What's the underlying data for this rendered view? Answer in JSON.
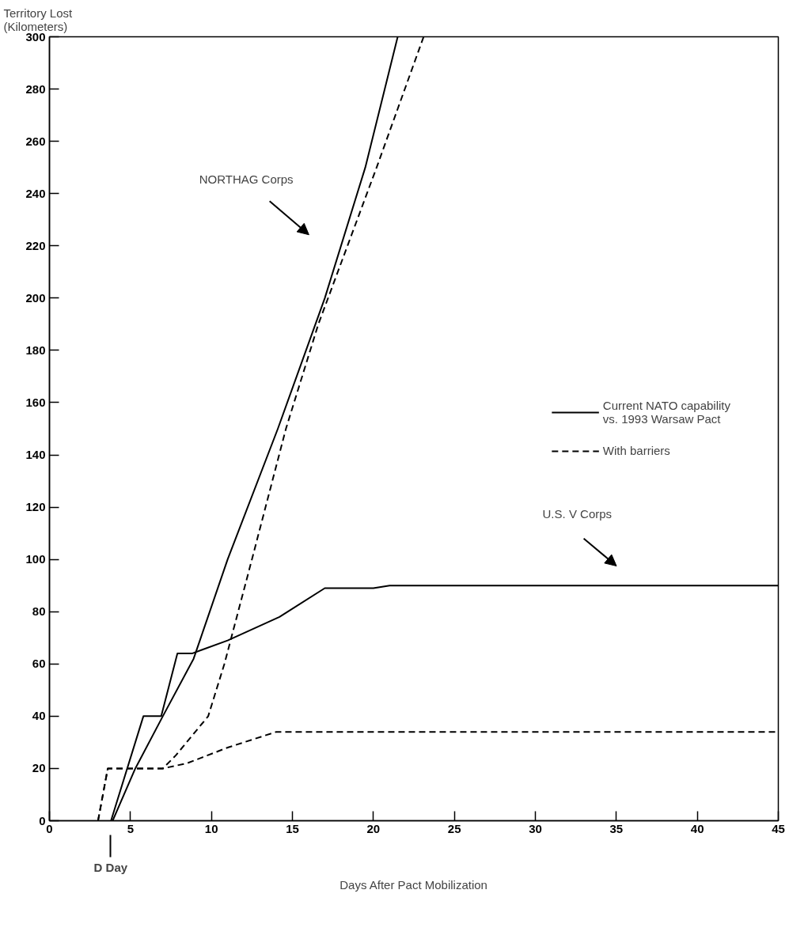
{
  "chart_data": {
    "type": "line",
    "xlabel": "Days After Pact Mobilization",
    "ylabel": "Territory Lost\n(Kilometers)",
    "xlim": [
      0,
      45
    ],
    "ylim": [
      0,
      300
    ],
    "xticks": [
      0,
      5,
      10,
      15,
      20,
      25,
      30,
      35,
      40,
      45
    ],
    "yticks": [
      0,
      20,
      40,
      60,
      80,
      100,
      120,
      140,
      160,
      180,
      200,
      220,
      240,
      260,
      280,
      300
    ],
    "grid": false,
    "legend": "right",
    "series": [
      {
        "name": "Current NATO capability\nvs. 1993 Warsaw Pact",
        "color": "#000000",
        "line_style": "solid",
        "x": [
          3.9,
          5.3,
          7.0,
          8.9,
          11.0,
          14.1,
          17.0,
          19.5,
          21.5
        ],
        "values": [
          0,
          20,
          40,
          62,
          100,
          150,
          200,
          250,
          300
        ]
      },
      {
        "color": "#000000",
        "line_style": "solid",
        "x": [
          3.8,
          5.8,
          6.9,
          7.9,
          8.8,
          11.0,
          14.2,
          17.0,
          20.0,
          21.0,
          45.0
        ],
        "values": [
          0,
          40,
          40,
          64,
          64,
          69,
          78,
          89,
          89,
          90,
          90
        ]
      },
      {
        "name": "With barriers",
        "color": "#000000",
        "line_style": "dashed",
        "x": [
          3.0,
          3.6,
          7.0,
          7.8,
          9.8,
          10.8,
          12.5,
          14.6,
          16.6,
          18.4,
          20.2,
          23.1
        ],
        "values": [
          0,
          20,
          20,
          25,
          40,
          60,
          100,
          150,
          190,
          220,
          250,
          300
        ]
      },
      {
        "color": "#000000",
        "line_style": "dashed",
        "x": [
          3.0,
          3.6,
          7.0,
          8.5,
          11.0,
          14.0,
          45.0
        ],
        "values": [
          0,
          20,
          20,
          22,
          28,
          34,
          34
        ]
      }
    ],
    "annotations": [
      "NORTHAG Corps",
      "U.S. V Corps",
      "D Day"
    ]
  }
}
